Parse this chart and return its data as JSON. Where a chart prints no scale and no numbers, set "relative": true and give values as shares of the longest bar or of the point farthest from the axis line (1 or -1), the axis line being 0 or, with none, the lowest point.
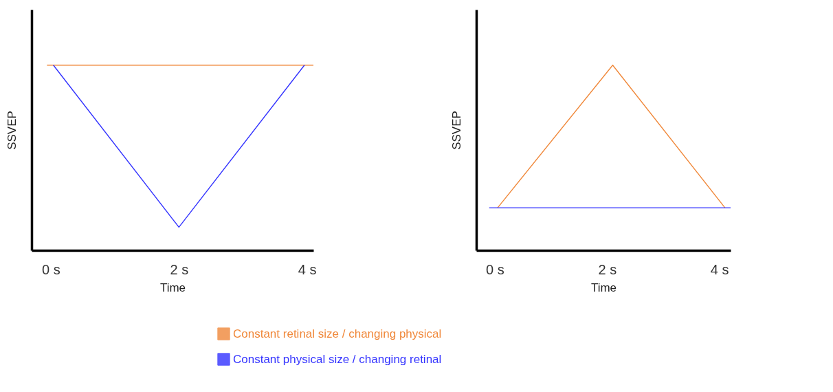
{
  "chart_data": [
    {
      "type": "line",
      "relative": true,
      "xlabel": "Time",
      "ylabel": "SSVEP",
      "xlim": [
        -0.3,
        4.1
      ],
      "xticks": [
        {
          "value": 0,
          "label": "0 s"
        },
        {
          "value": 2,
          "label": "2 s"
        },
        {
          "value": 4,
          "label": "4 s"
        }
      ],
      "grid": false,
      "legend": "bottom",
      "series": [
        {
          "name": "Constant retinal size / changing physical",
          "color": "#f0883a",
          "x": [
            -0.06,
            4.1
          ],
          "values": [
            1,
            1
          ]
        },
        {
          "name": "Constant physical size / changing retinal",
          "color": "#3333ff",
          "x": [
            0.04,
            2,
            3.96
          ],
          "values": [
            1,
            0.125,
            1
          ]
        }
      ]
    },
    {
      "type": "line",
      "relative": true,
      "xlabel": "Time",
      "ylabel": "SSVEP",
      "xlim": [
        -0.33,
        4.2
      ],
      "xticks": [
        {
          "value": 0,
          "label": "0 s"
        },
        {
          "value": 2,
          "label": "2 s"
        },
        {
          "value": 4,
          "label": "4 s"
        }
      ],
      "grid": false,
      "series": [
        {
          "color": "#f0883a",
          "x": [
            0.05,
            2.1,
            4.1
          ],
          "values": [
            0.23,
            1,
            0.23
          ]
        },
        {
          "color": "#3333ff",
          "x": [
            -0.1,
            4.2
          ],
          "values": [
            0.23,
            0.23
          ]
        }
      ]
    }
  ]
}
